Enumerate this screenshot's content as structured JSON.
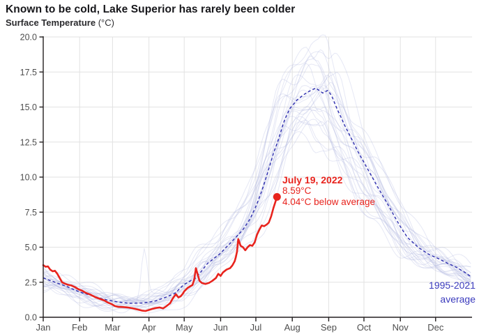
{
  "title": "Known to be cold, Lake Superior has rarely been colder",
  "subtitle": {
    "label": "Surface Temperature",
    "units": " (°C)"
  },
  "annotation": {
    "date": "July 19, 2022",
    "temp": "8.59°C",
    "delta": "4.04°C below average"
  },
  "legend": {
    "line1": "1995-2021",
    "line2": "average"
  },
  "colors": {
    "current_year": "#e8231d",
    "average_line": "#2c2cae",
    "legend_text": "#3b3bbd",
    "year_lines": "#b4b9e2",
    "grid": "#e2e2e2",
    "axis": "#231f20",
    "tick_label": "#4d4d4d"
  },
  "chart_data": {
    "type": "line",
    "title": "Known to be cold, Lake Superior has rarely been colder",
    "ylabel": "Surface Temperature (°C)",
    "xlabel": "",
    "grid": true,
    "ylim": [
      0,
      20
    ],
    "yticks": [
      0,
      2.5,
      5,
      7.5,
      10,
      12.5,
      15,
      17.5,
      20
    ],
    "ytick_labels": [
      "0.0",
      "2.5",
      "5.0",
      "7.5",
      "10.0",
      "12.5",
      "15.0",
      "17.5",
      "20.0"
    ],
    "xtick_labels": [
      "Jan",
      "Feb",
      "Mar",
      "Apr",
      "May",
      "Jun",
      "Jul",
      "Aug",
      "Sep",
      "Oct",
      "Nov",
      "Dec"
    ],
    "month_start_days": [
      0,
      31,
      59,
      90,
      120,
      151,
      181,
      212,
      243,
      273,
      304,
      334
    ],
    "days_in_year": 365,
    "legend_position": "lower right",
    "series": [
      {
        "name": "1995-2021 average",
        "style": "dashed",
        "points": [
          [
            0,
            2.8
          ],
          [
            10,
            2.5
          ],
          [
            20,
            2.2
          ],
          [
            31,
            1.8
          ],
          [
            41,
            1.55
          ],
          [
            51,
            1.3
          ],
          [
            61,
            1.12
          ],
          [
            73,
            1.0
          ],
          [
            85,
            1.02
          ],
          [
            95,
            1.15
          ],
          [
            105,
            1.45
          ],
          [
            112,
            1.7
          ],
          [
            120,
            2.35
          ],
          [
            130,
            2.8
          ],
          [
            140,
            3.85
          ],
          [
            150,
            4.5
          ],
          [
            160,
            5.35
          ],
          [
            170,
            6.25
          ],
          [
            176,
            7.0
          ],
          [
            181,
            7.9
          ],
          [
            186,
            9.0
          ],
          [
            191,
            10.3
          ],
          [
            196,
            11.7
          ],
          [
            200,
            12.63
          ],
          [
            205,
            14.0
          ],
          [
            210,
            14.9
          ],
          [
            216,
            15.5
          ],
          [
            222,
            15.9
          ],
          [
            228,
            16.2
          ],
          [
            232,
            16.35
          ],
          [
            238,
            16.0
          ],
          [
            242,
            16.18
          ],
          [
            245,
            15.9
          ],
          [
            250,
            14.9
          ],
          [
            256,
            13.8
          ],
          [
            262,
            12.8
          ],
          [
            268,
            11.8
          ],
          [
            274,
            10.9
          ],
          [
            280,
            10.0
          ],
          [
            286,
            9.1
          ],
          [
            293,
            8.1
          ],
          [
            301,
            6.9
          ],
          [
            306,
            6.2
          ],
          [
            310,
            5.7
          ],
          [
            319,
            5.0
          ],
          [
            328,
            4.5
          ],
          [
            336,
            4.2
          ],
          [
            343,
            3.9
          ],
          [
            351,
            3.6
          ],
          [
            359,
            3.2
          ],
          [
            364,
            2.9
          ]
        ]
      },
      {
        "name": "2022",
        "style": "solid",
        "end_point": {
          "day": 199,
          "value": 8.59,
          "label": "July 19, 2022"
        },
        "points": [
          [
            0,
            3.72
          ],
          [
            2,
            3.6
          ],
          [
            4,
            3.63
          ],
          [
            6,
            3.4
          ],
          [
            8,
            3.28
          ],
          [
            10,
            3.32
          ],
          [
            12,
            3.1
          ],
          [
            14,
            2.8
          ],
          [
            16,
            2.5
          ],
          [
            18,
            2.42
          ],
          [
            21,
            2.32
          ],
          [
            24,
            2.27
          ],
          [
            27,
            2.15
          ],
          [
            30,
            2.0
          ],
          [
            33,
            1.9
          ],
          [
            36,
            1.75
          ],
          [
            40,
            1.62
          ],
          [
            44,
            1.45
          ],
          [
            48,
            1.32
          ],
          [
            52,
            1.2
          ],
          [
            55,
            1.05
          ],
          [
            58,
            0.95
          ],
          [
            61,
            0.8
          ],
          [
            64,
            0.74
          ],
          [
            68,
            0.73
          ],
          [
            72,
            0.7
          ],
          [
            76,
            0.64
          ],
          [
            80,
            0.56
          ],
          [
            84,
            0.48
          ],
          [
            87,
            0.45
          ],
          [
            90,
            0.52
          ],
          [
            93,
            0.6
          ],
          [
            96,
            0.66
          ],
          [
            99,
            0.7
          ],
          [
            102,
            0.63
          ],
          [
            105,
            0.8
          ],
          [
            108,
            1.0
          ],
          [
            110,
            1.3
          ],
          [
            112,
            1.55
          ],
          [
            113,
            1.64
          ],
          [
            115,
            1.42
          ],
          [
            117,
            1.5
          ],
          [
            119,
            1.7
          ],
          [
            120,
            1.85
          ],
          [
            123,
            2.1
          ],
          [
            125,
            2.2
          ],
          [
            127,
            2.3
          ],
          [
            128.5,
            2.67
          ],
          [
            130,
            3.5
          ],
          [
            131,
            3.2
          ],
          [
            132,
            2.9
          ],
          [
            133,
            2.6
          ],
          [
            135,
            2.45
          ],
          [
            138,
            2.38
          ],
          [
            141,
            2.45
          ],
          [
            144,
            2.6
          ],
          [
            147,
            2.8
          ],
          [
            149,
            3.1
          ],
          [
            151,
            2.95
          ],
          [
            153,
            3.2
          ],
          [
            156,
            3.4
          ],
          [
            159,
            3.5
          ],
          [
            161,
            3.7
          ],
          [
            163,
            4.0
          ],
          [
            164,
            4.3
          ],
          [
            165,
            4.7
          ],
          [
            166,
            5.58
          ],
          [
            167,
            5.35
          ],
          [
            168,
            5.1
          ],
          [
            170,
            5.0
          ],
          [
            172,
            4.78
          ],
          [
            174,
            5.0
          ],
          [
            176,
            5.15
          ],
          [
            178,
            5.1
          ],
          [
            180,
            5.35
          ],
          [
            182,
            5.9
          ],
          [
            184,
            6.25
          ],
          [
            186,
            6.55
          ],
          [
            188,
            6.5
          ],
          [
            190,
            6.6
          ],
          [
            192,
            6.75
          ],
          [
            194,
            7.2
          ],
          [
            196,
            7.8
          ],
          [
            197.5,
            8.2
          ],
          [
            199,
            8.59
          ]
        ]
      },
      {
        "name": "individual years 1995-2021",
        "style": "faint",
        "count": 27,
        "note": "27 light background traces, one per year, spanning roughly 0.2-20 °C; generated procedurally around the average curve"
      }
    ]
  }
}
